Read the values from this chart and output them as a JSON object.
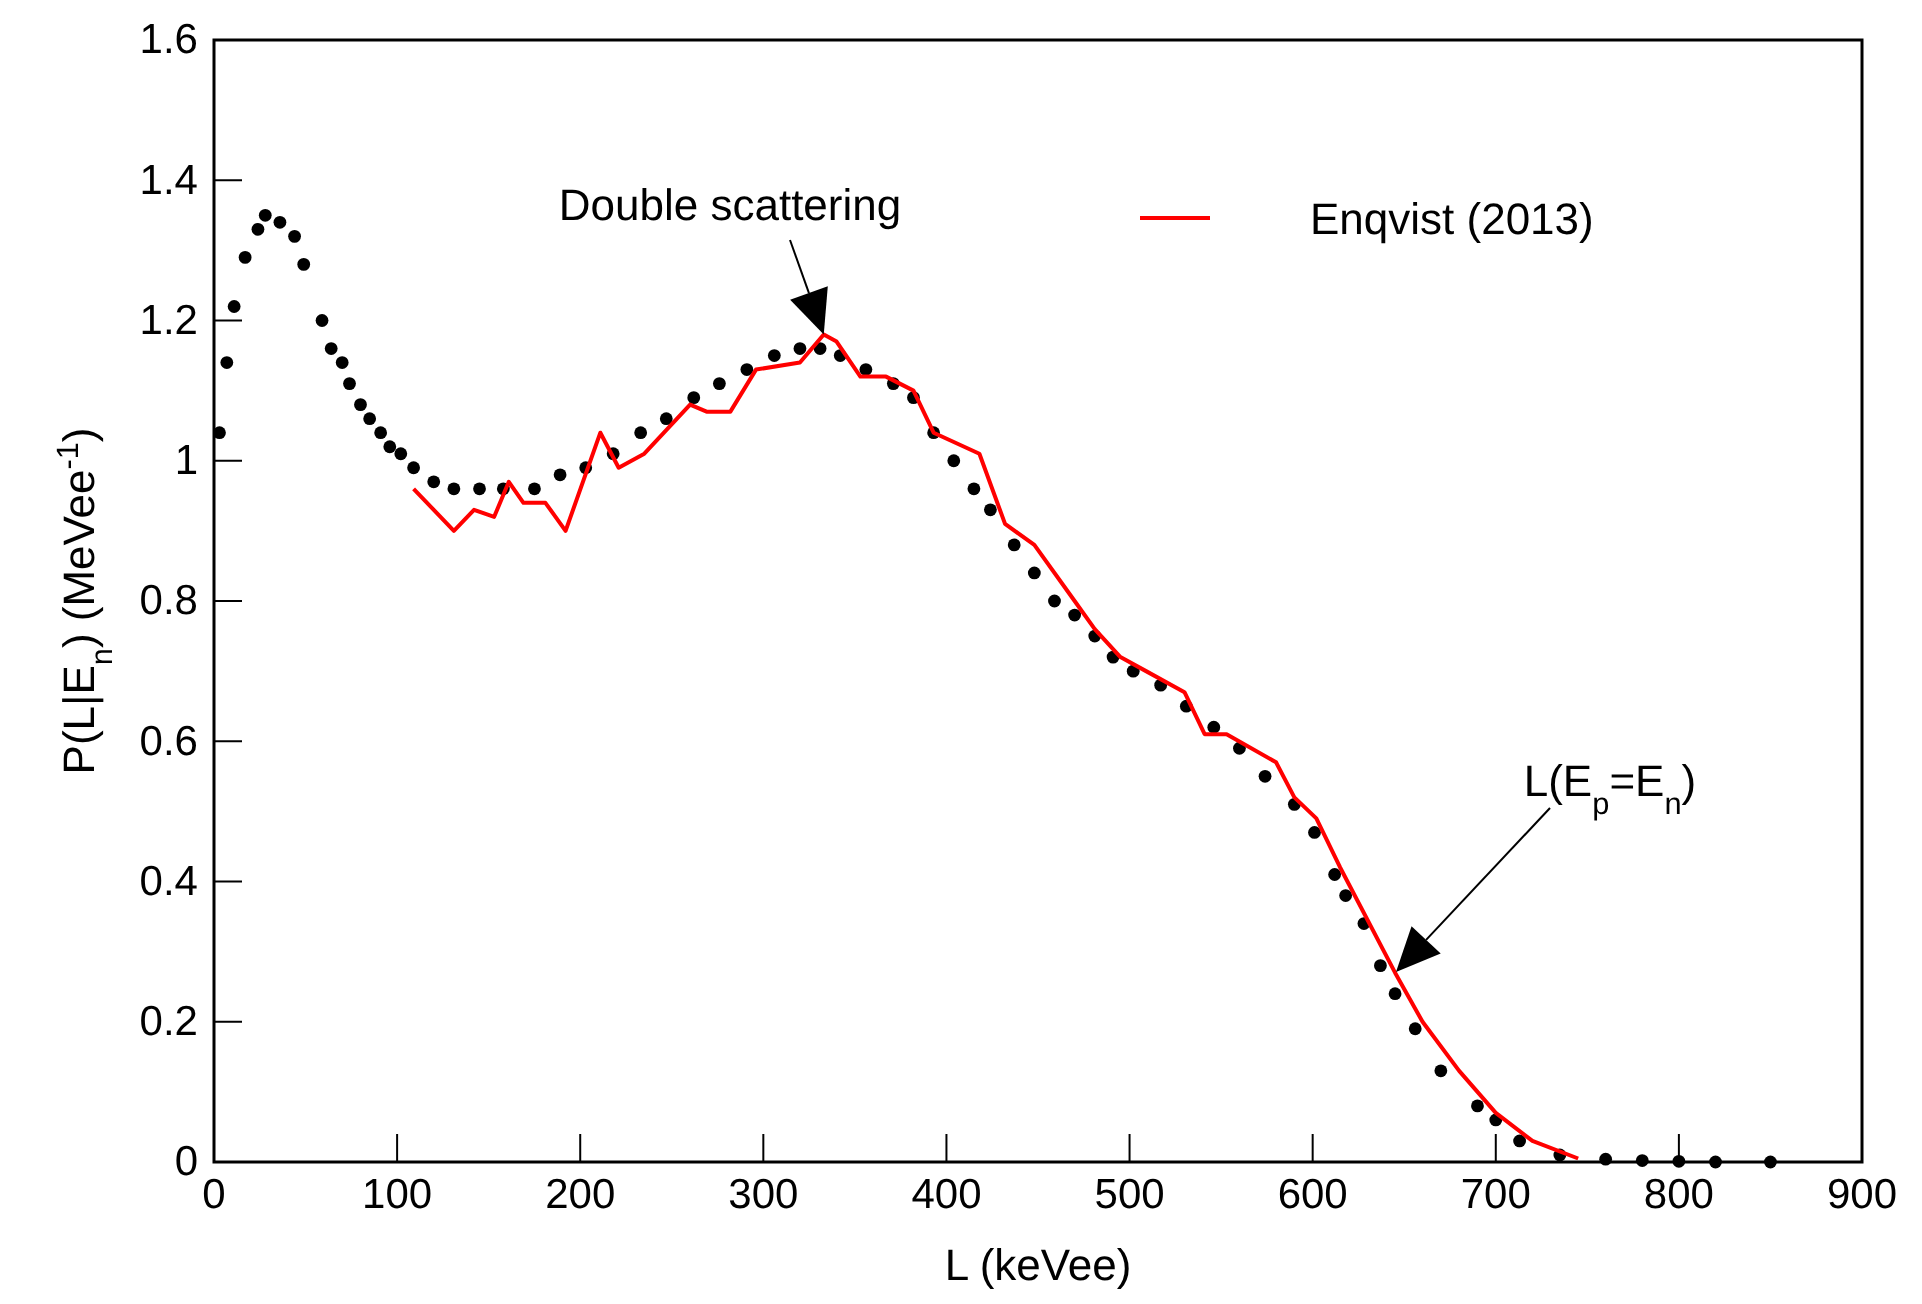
{
  "chart_data": {
    "type": "scatter",
    "xlabel": "L (keVee)",
    "ylabel": "P(L|E$_{n}$) (MeVee$^{-1}$)",
    "xlim": [
      0,
      900
    ],
    "xticks": [
      0,
      100,
      200,
      300,
      400,
      500,
      600,
      700,
      800,
      900
    ],
    "ylim": [
      0,
      1.6
    ],
    "yticks": [
      0,
      0.2,
      0.4,
      0.6,
      0.8,
      1,
      1.2,
      1.4,
      1.6
    ],
    "grid": false,
    "legend": "top right",
    "annotations": [
      {
        "text": "Double scattering",
        "x": 333,
        "y": 1.18
      },
      "L(E$_{p}$=E$_{n}$)"
    ],
    "series": [
      {
        "color": "#000000",
        "marker": "circle",
        "x": [
          3,
          7,
          11,
          17,
          24,
          28,
          36,
          44,
          49,
          59,
          64,
          70,
          74,
          80,
          85,
          91,
          96,
          102,
          109,
          120,
          131,
          145,
          158,
          175,
          189,
          203,
          218,
          233,
          247,
          262,
          276,
          291,
          306,
          320,
          331,
          342,
          356,
          371,
          382,
          393,
          404,
          415,
          424,
          437,
          448,
          459,
          470,
          481,
          491,
          502,
          517,
          531,
          546,
          560,
          574,
          590,
          601,
          612,
          618,
          628,
          637,
          645,
          656,
          670,
          690,
          700,
          713,
          735,
          760,
          780,
          800,
          820,
          850
        ],
        "values": [
          1.04,
          1.14,
          1.22,
          1.29,
          1.33,
          1.35,
          1.34,
          1.32,
          1.28,
          1.2,
          1.16,
          1.14,
          1.11,
          1.08,
          1.06,
          1.04,
          1.02,
          1.01,
          0.99,
          0.97,
          0.96,
          0.96,
          0.96,
          0.96,
          0.98,
          0.99,
          1.01,
          1.04,
          1.06,
          1.09,
          1.11,
          1.13,
          1.15,
          1.16,
          1.16,
          1.15,
          1.13,
          1.11,
          1.09,
          1.04,
          1.0,
          0.96,
          0.93,
          0.88,
          0.84,
          0.8,
          0.78,
          0.75,
          0.72,
          0.7,
          0.68,
          0.65,
          0.62,
          0.59,
          0.55,
          0.51,
          0.47,
          0.41,
          0.38,
          0.34,
          0.28,
          0.24,
          0.19,
          0.13,
          0.08,
          0.06,
          0.03,
          0.01,
          0.004,
          0.002,
          0.001,
          0,
          0
        ]
      },
      {
        "type": "line",
        "name": "Enqvist (2013)",
        "color": "#ff0000",
        "line_style": "solid",
        "x": [
          109,
          131,
          142,
          153,
          161,
          169,
          181,
          192,
          211,
          221,
          235,
          260,
          269,
          282,
          296,
          320,
          333,
          340,
          353,
          367,
          382,
          393,
          418,
          432,
          448,
          470,
          481,
          495,
          509,
          530,
          541,
          553,
          580,
          590,
          602,
          615,
          645,
          660,
          680,
          700,
          720,
          745
        ],
        "values": [
          0.96,
          0.9,
          0.93,
          0.92,
          0.97,
          0.94,
          0.94,
          0.9,
          1.04,
          0.99,
          1.01,
          1.08,
          1.07,
          1.07,
          1.13,
          1.14,
          1.18,
          1.17,
          1.12,
          1.12,
          1.1,
          1.04,
          1.01,
          0.91,
          0.88,
          0.8,
          0.76,
          0.72,
          0.7,
          0.67,
          0.61,
          0.61,
          0.57,
          0.52,
          0.49,
          0.42,
          0.27,
          0.2,
          0.13,
          0.07,
          0.03,
          0.005
        ]
      }
    ]
  }
}
